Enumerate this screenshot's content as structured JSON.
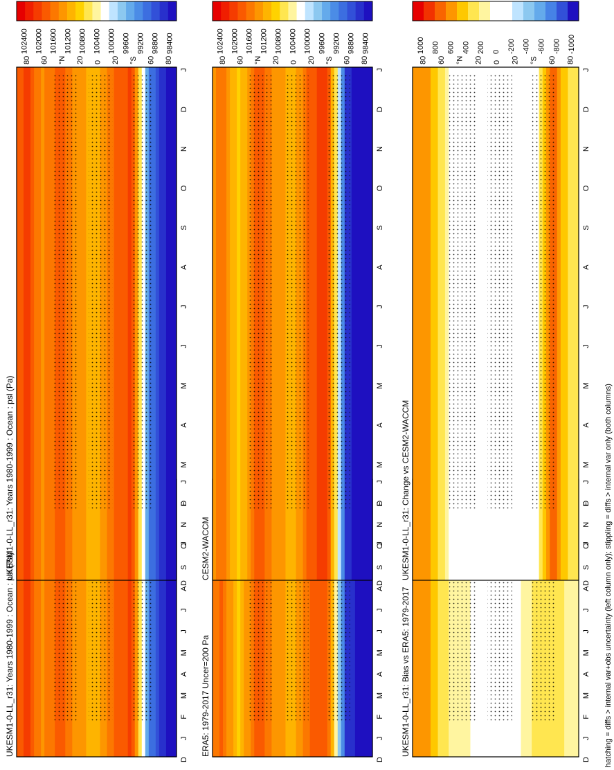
{
  "figure": {
    "footer": "hatching = diffs > internal var+obs uncertainty (left column only); stippling = diffs > internal var only (both columns)"
  },
  "colors": {
    "abs_palette": [
      "#e60000",
      "#f01e00",
      "#f53c00",
      "#fa5a00",
      "#fc7800",
      "#fd9600",
      "#feb400",
      "#ffd200",
      "#ffe650",
      "#fff5a0",
      "#ffffff",
      "#bfe4ff",
      "#8cc8f0",
      "#64aaeb",
      "#4b8ce6",
      "#3c6ee0",
      "#3250d8",
      "#2830cc",
      "#1e10c0"
    ],
    "diff_palette": [
      "#e60000",
      "#f23200",
      "#f96400",
      "#fd9600",
      "#fec800",
      "#ffe650",
      "#fff5a0",
      "#ffffff",
      "#ffffff",
      "#bfe4ff",
      "#8cc8f0",
      "#64aaeb",
      "#4682e6",
      "#3250d8",
      "#1e10c0"
    ],
    "stipple": "#000000",
    "frame": "#000000"
  },
  "chart_data": [
    {
      "type": "heatmap",
      "panel": "left-top",
      "title": "UKESM1-0-LL_r31: Years 1980-1999 : Ocean : psl (Pa)",
      "x_ticks": [
        "D",
        "J",
        "F",
        "M",
        "A",
        "M",
        "J",
        "J",
        "A",
        "S",
        "O",
        "N",
        "D",
        "J"
      ],
      "y_ticks": [
        "80",
        "60",
        "°N",
        "20",
        "0",
        "20",
        "°S",
        "60",
        "80"
      ],
      "colorbar_labels": [
        "102400",
        "102000",
        "101600",
        "101200",
        "100800",
        "100400",
        "100000",
        "99600",
        "99200",
        "98800",
        "98400"
      ],
      "latitude_profile_pa": {
        "lat": [
          90,
          80,
          60,
          40,
          20,
          0,
          -20,
          -40,
          -60,
          -80,
          -90
        ],
        "values": [
          101500,
          101900,
          101300,
          101700,
          101200,
          101000,
          101600,
          101800,
          99200,
          98500,
          98600
        ]
      },
      "hatching": true,
      "stippling": true
    },
    {
      "type": "heatmap",
      "panel": "right-top",
      "title": "UKESM1-0-LL_r31: Years 1980-1999 : Ocean : psl (Pa)",
      "x_ticks": [
        "D",
        "J",
        "F",
        "M",
        "A",
        "M",
        "J",
        "J",
        "A",
        "S",
        "O",
        "N",
        "D",
        "J"
      ],
      "y_ticks": [
        "80",
        "60",
        "°N",
        "20",
        "0",
        "20",
        "°S",
        "60",
        "80"
      ],
      "colorbar_labels": [
        "102400",
        "102000",
        "101600",
        "101200",
        "100800",
        "100400",
        "100000",
        "99600",
        "99200",
        "98800",
        "98400"
      ],
      "latitude_profile_pa": {
        "lat": [
          90,
          80,
          60,
          40,
          20,
          0,
          -20,
          -40,
          -60,
          -80,
          -90
        ],
        "values": [
          101500,
          101900,
          101300,
          101700,
          101200,
          101000,
          101600,
          101800,
          99200,
          98500,
          98600
        ]
      },
      "hatching": false,
      "stippling": true
    },
    {
      "type": "heatmap",
      "panel": "left-middle",
      "title": "ERA5: 1979-2017 Uncer=200 Pa",
      "x_ticks": [
        "D",
        "J",
        "F",
        "M",
        "A",
        "M",
        "J",
        "J",
        "A",
        "S",
        "O",
        "N",
        "D",
        "J"
      ],
      "y_ticks": [
        "80",
        "60",
        "°N",
        "20",
        "0",
        "20",
        "°S",
        "60",
        "80"
      ],
      "colorbar_labels": [
        "102400",
        "102000",
        "101600",
        "101200",
        "100800",
        "100400",
        "100000",
        "99600",
        "99200",
        "98800",
        "98400"
      ],
      "latitude_profile_pa": {
        "lat": [
          90,
          80,
          60,
          40,
          20,
          0,
          -20,
          -40,
          -60,
          -80,
          -90
        ],
        "values": [
          101300,
          101600,
          100900,
          101700,
          101300,
          101000,
          101600,
          101700,
          98800,
          98400,
          98500
        ]
      },
      "hatching": true,
      "stippling": true
    },
    {
      "type": "heatmap",
      "panel": "right-middle",
      "title": "CESM2-WACCM",
      "x_ticks": [
        "D",
        "J",
        "F",
        "M",
        "A",
        "M",
        "J",
        "J",
        "A",
        "S",
        "O",
        "N",
        "D",
        "J"
      ],
      "y_ticks": [
        "80",
        "60",
        "°N",
        "20",
        "0",
        "20",
        "°S",
        "60",
        "80"
      ],
      "colorbar_labels": [
        "102400",
        "102000",
        "101600",
        "101200",
        "100800",
        "100400",
        "100000",
        "99600",
        "99200",
        "98800",
        "98400"
      ],
      "latitude_profile_pa": {
        "lat": [
          90,
          80,
          60,
          40,
          20,
          0,
          -20,
          -40,
          -60,
          -80,
          -90
        ],
        "values": [
          101300,
          101500,
          100800,
          101700,
          101300,
          101000,
          101700,
          101900,
          98800,
          98300,
          98400
        ]
      },
      "hatching": false,
      "stippling": true
    },
    {
      "type": "heatmap",
      "panel": "left-bottom",
      "title": "UKESM1-0-LL_r31: Bias vs ERA5: 1979-2017",
      "x_ticks": [
        "D",
        "J",
        "F",
        "M",
        "A",
        "M",
        "J",
        "J",
        "A",
        "S",
        "O",
        "N",
        "D",
        "J"
      ],
      "y_ticks": [
        "80",
        "60",
        "°N",
        "20",
        "0",
        "20",
        "°S",
        "60",
        "80"
      ],
      "colorbar_labels": [
        "1000",
        "800",
        "600",
        "400",
        "200",
        "0",
        "-200",
        "-400",
        "-600",
        "-800",
        "-1000"
      ],
      "latitude_profile_pa": {
        "lat": [
          90,
          80,
          60,
          40,
          20,
          0,
          -20,
          -40,
          -60,
          -80,
          -90
        ],
        "values": [
          600,
          600,
          300,
          100,
          50,
          0,
          0,
          200,
          300,
          150,
          100
        ]
      },
      "hatching": true,
      "stippling": true
    },
    {
      "type": "heatmap",
      "panel": "right-bottom",
      "title": "UKESM1-0-LL_r31: Change vs CESM2-WACCM",
      "x_ticks": [
        "D",
        "J",
        "F",
        "M",
        "A",
        "M",
        "J",
        "J",
        "A",
        "S",
        "O",
        "N",
        "D",
        "J"
      ],
      "y_ticks": [
        "80",
        "60",
        "°N",
        "20",
        "0",
        "20",
        "°S",
        "60",
        "80"
      ],
      "colorbar_labels": [
        "1000",
        "800",
        "600",
        "400",
        "200",
        "0",
        "-200",
        "-400",
        "-600",
        "-800",
        "-1000"
      ],
      "latitude_profile_pa": {
        "lat": [
          90,
          80,
          60,
          40,
          20,
          0,
          -20,
          -40,
          -60,
          -80,
          -90
        ],
        "values": [
          500,
          600,
          300,
          -200,
          -100,
          0,
          -100,
          -200,
          700,
          300,
          200
        ]
      },
      "hatching": false,
      "stippling": true
    }
  ]
}
